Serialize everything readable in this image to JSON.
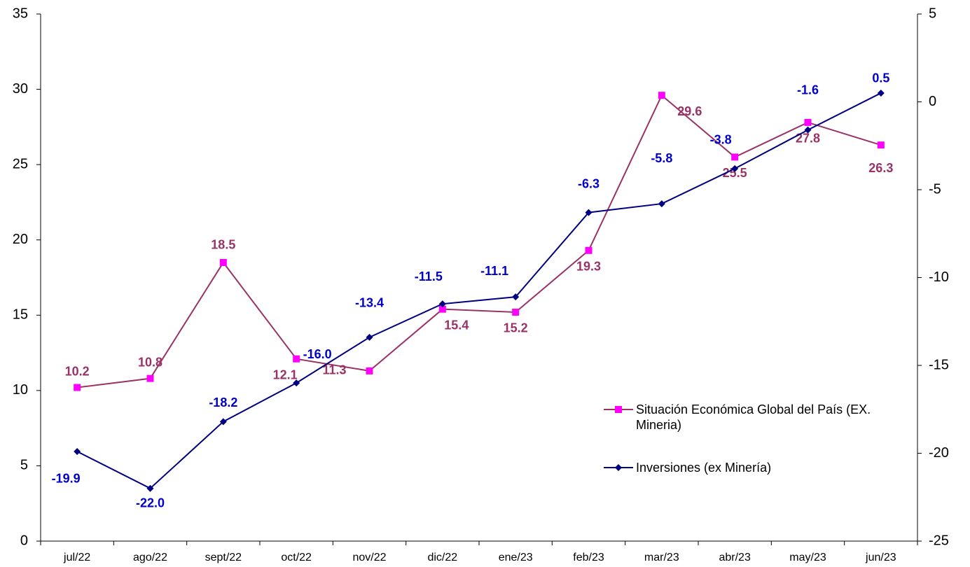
{
  "chart_data": {
    "type": "line",
    "categories": [
      "jul/22",
      "ago/22",
      "sept/22",
      "oct/22",
      "nov/22",
      "dic/22",
      "ene/23",
      "feb/23",
      "mar/23",
      "abr/23",
      "may/23",
      "jun/23"
    ],
    "series": [
      {
        "name": "Situación Económica Global del País (EX. Mineria)",
        "color": "#993366",
        "marker_color": "#ff00ff",
        "marker": "square",
        "label_color": "#993366",
        "values": [
          10.2,
          10.8,
          18.5,
          12.1,
          11.3,
          15.4,
          15.2,
          19.3,
          29.6,
          25.5,
          27.8,
          26.3
        ]
      },
      {
        "name": "Inversiones (ex Minería)",
        "color": "#000080",
        "marker_color": "#000080",
        "marker": "diamond",
        "label_color": "#0000cc",
        "axis": "y2",
        "values": [
          -19.9,
          -22.0,
          -18.2,
          -16.0,
          -13.4,
          -11.5,
          -11.1,
          -6.3,
          -5.8,
          -3.8,
          -1.6,
          0.5
        ],
        "value_labels": [
          "-19.9",
          "-22.0",
          "-18.2",
          "-16.0",
          "-13.4",
          "-11.5",
          "-11.1",
          "-6.3",
          "-5.8",
          "-3.8",
          "-1.6",
          "0.5"
        ]
      }
    ],
    "ylim": [
      0,
      35
    ],
    "yticks": [
      0,
      5,
      10,
      15,
      20,
      25,
      30,
      35
    ],
    "y2lim": [
      -25,
      5
    ],
    "y2ticks": [
      -25,
      -20,
      -15,
      -10,
      -5,
      0,
      5
    ],
    "grid": false,
    "legend": "right"
  }
}
